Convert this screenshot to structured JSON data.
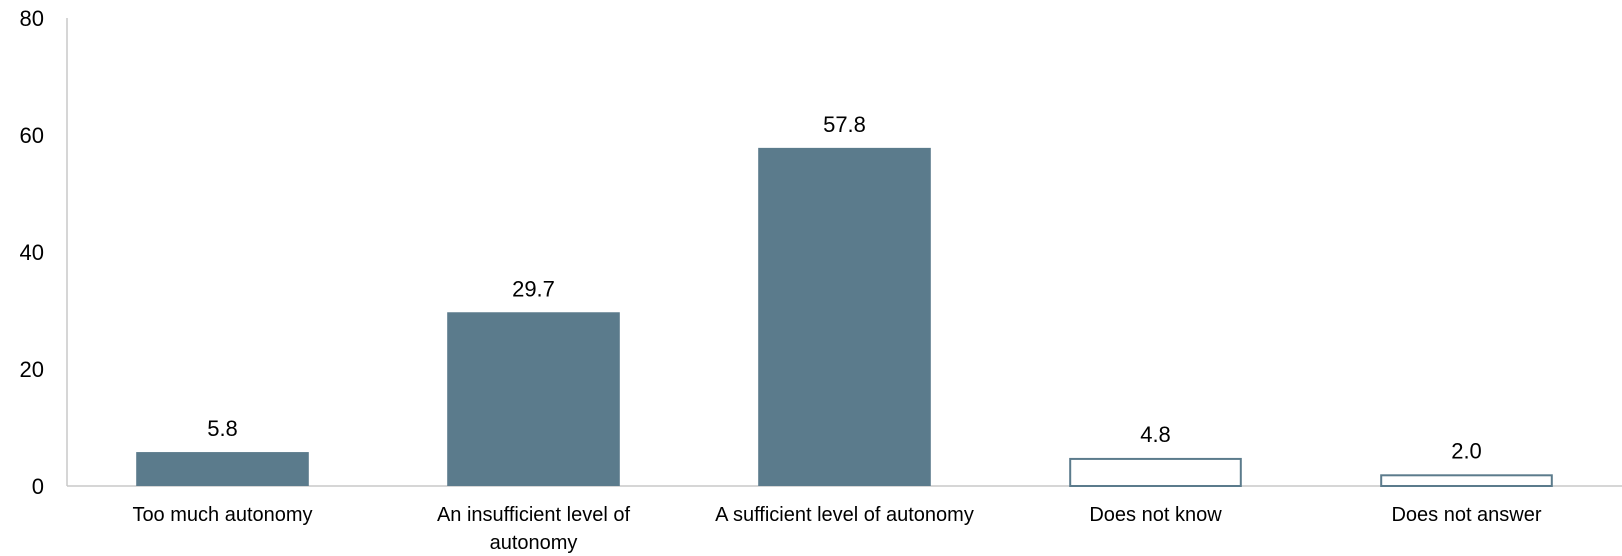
{
  "chart_data": {
    "type": "bar",
    "categories": [
      [
        "Too much autonomy"
      ],
      [
        "An insufficient level of",
        "autonomy"
      ],
      [
        "A sufficient level of autonomy"
      ],
      [
        "Does not know"
      ],
      [
        "Does not answer"
      ]
    ],
    "values": [
      5.8,
      29.7,
      57.8,
      4.8,
      2.0
    ],
    "data_labels": [
      "5.8",
      "29.7",
      "57.8",
      "4.8",
      "2.0"
    ],
    "bar_styles": [
      "filled",
      "filled",
      "filled",
      "outline",
      "outline"
    ],
    "ylim": [
      0,
      80
    ],
    "yticks": [
      "0",
      "20",
      "40",
      "60",
      "80"
    ],
    "grid": false,
    "legend": "none",
    "colors": {
      "bar_fill": "#5b7b8c",
      "bar_outline": "#5b7b8c",
      "axis": "#c8c8c8"
    }
  }
}
